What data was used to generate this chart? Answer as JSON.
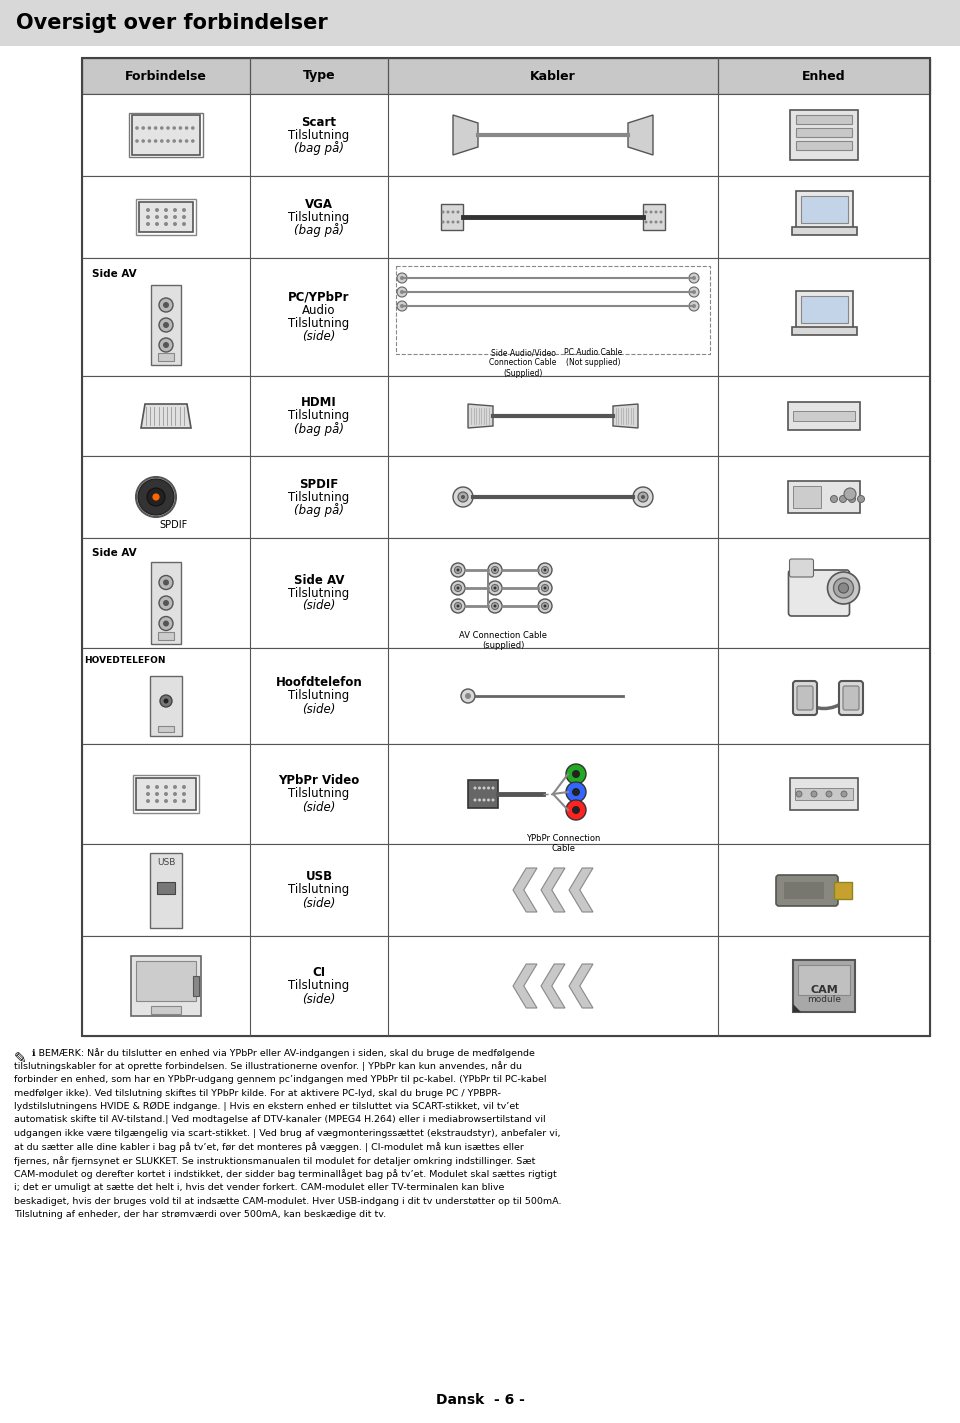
{
  "title": "Oversigt over forbindelser",
  "col_headers": [
    "Forbindelse",
    "Type",
    "Kabler",
    "Enhed"
  ],
  "type_texts": [
    [
      "Scart",
      "Tilslutning",
      "(bag på)"
    ],
    [
      "VGA",
      "Tilslutning",
      "(bag på)"
    ],
    [
      "PC/YPbPr",
      "Audio",
      "Tilslutning",
      "(side)"
    ],
    [
      "HDMI",
      "Tilslutning",
      "(bag på)"
    ],
    [
      "SPDIF",
      "Tilslutning",
      "(bag på)"
    ],
    [
      "Side AV",
      "Tilslutning",
      "(side)"
    ],
    [
      "Hoofdtelefon",
      "Tilslutning",
      "(side)"
    ],
    [
      "YPbPr Video",
      "Tilslutning",
      "(side)"
    ],
    [
      "USB",
      "Tilslutning",
      "(side)"
    ],
    [
      "CI",
      "Tilslutning",
      "(side)"
    ]
  ],
  "side_av_rows": [
    2,
    5
  ],
  "hoofdtelefon_row": 6,
  "spdif_row": 4,
  "footnote": "ℹ BEMÆRK: Når du tilslutter en enhed via YPbPr eller AV-indgangen i siden, skal du bruge de medfølgende tilslutningskabler for at oprette forbindelsen. Se illustrationerne ovenfor. | YPbPr kan kun anvendes, når du forbinder en enhed, som har en YPbPr-udgang gennem pc’indgangen med YPbPr til pc-kabel. (YPbPr til PC-kabel medfølger ikke). Ved tilslutning skiftes til YPbPr kilde. For at aktivere PC-lyd, skal du bruge PC / YPBPR-lydstilslutningens HVIDE & RØDE indgange. | Hvis en ekstern enhed er tilsluttet via SCART-stikket, vil tv’et automatisk skifte til AV-tilstand.| Ved modtagelse af DTV-kanaler (MPEG4 H.264) eller i mediabrowsertilstand vil udgangen ikke være tilgængelig via scart-stikket. | Ved brug af vægmonteringssættet (ekstraudstyr), anbefaler vi, at du sætter alle dine kabler i bag på tv’et, før det monteres på væggen. | CI-modulet må kun isættes eller fjernes, når fjernsynet er SLUKKET. Se instruktionsmanualen til modulet for detaljer omkring indstillinger. Sæt CAM-modulet og derefter kortet i indstikket, der sidder bag terminallåget bag på tv’et. Modulet skal sættes rigtigt i; det er umuligt at sætte det helt i, hvis det vender forkert. CAM-modulet eller TV-terminalen kan blive beskadiget, hvis der bruges vold til at indsætte CAM-modulet. Hver USB-indgang i dit tv understøtter op til 500mA. Tilslutning af enheder, der har strømværdi over 500mA, kan beskædige dit tv.",
  "footer": "Dansk  - 6 -"
}
